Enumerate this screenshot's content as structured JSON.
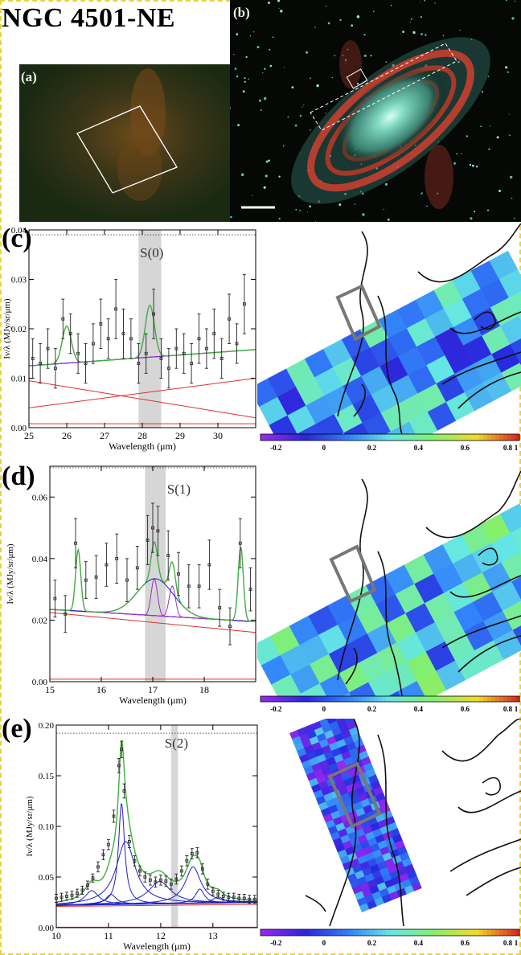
{
  "title": "NGC 4501-NE",
  "labels": {
    "a": "(a)",
    "b": "(b)",
    "c": "(c)",
    "d": "(d)",
    "e": "(e)"
  },
  "colorbar_ticks": [
    "-0.2",
    "0",
    "0.2",
    "0.4",
    "0.6",
    "0.8",
    "1"
  ],
  "colors": {
    "frame": "#e8d23a",
    "red": "#e03030",
    "blue": "#2020c0",
    "green": "#40b040",
    "purple": "#9a30c8",
    "gray_band": "#c8c8c8"
  },
  "chart_data": [
    {
      "id": "c",
      "type": "line",
      "title": "S(0)",
      "xlabel": "Wavelength (μm)",
      "ylabel": "Iν/λ (MJy/sr/μm)",
      "xlim": [
        25,
        31
      ],
      "ylim": [
        0,
        0.04
      ],
      "xticks": [
        25,
        26,
        27,
        28,
        29,
        30
      ],
      "yticks": [
        0.0,
        0.01,
        0.02,
        0.03,
        0.04
      ],
      "ytick_labels": [
        "0.00",
        "0.01",
        "0.02",
        "0.03",
        "0.04"
      ],
      "band": [
        27.9,
        28.5
      ],
      "dotted_level": 0.039,
      "data_points": {
        "x": [
          25.1,
          25.3,
          25.5,
          25.7,
          25.9,
          26.1,
          26.3,
          26.5,
          26.7,
          26.9,
          27.1,
          27.3,
          27.5,
          27.7,
          27.9,
          28.1,
          28.3,
          28.5,
          28.7,
          28.9,
          29.1,
          29.3,
          29.5,
          29.7,
          29.9,
          30.1,
          30.3,
          30.5,
          30.7
        ],
        "y": [
          0.014,
          0.013,
          0.016,
          0.012,
          0.022,
          0.019,
          0.015,
          0.013,
          0.017,
          0.021,
          0.018,
          0.024,
          0.019,
          0.018,
          0.013,
          0.015,
          0.023,
          0.014,
          0.012,
          0.016,
          0.015,
          0.013,
          0.018,
          0.016,
          0.019,
          0.014,
          0.022,
          0.017,
          0.025
        ],
        "err": [
          0.004,
          0.004,
          0.004,
          0.004,
          0.004,
          0.004,
          0.004,
          0.004,
          0.004,
          0.005,
          0.004,
          0.006,
          0.005,
          0.004,
          0.004,
          0.004,
          0.005,
          0.004,
          0.004,
          0.004,
          0.004,
          0.004,
          0.005,
          0.004,
          0.005,
          0.004,
          0.005,
          0.004,
          0.006
        ]
      },
      "continuum": [
        [
          25,
          0.0125
        ],
        [
          31,
          0.0158
        ]
      ],
      "red_lines": [
        [
          [
            25,
            0.0095
          ],
          [
            31,
            0.002
          ]
        ],
        [
          [
            25,
            0.004
          ],
          [
            31,
            0.01
          ]
        ],
        [
          [
            25,
            0.0008
          ],
          [
            31,
            0.0008
          ]
        ]
      ],
      "lines": [
        {
          "center": 26.0,
          "height": 0.0075,
          "width": 0.12
        },
        {
          "center": 28.2,
          "height": 0.0105,
          "width": 0.12
        }
      ]
    },
    {
      "id": "d",
      "type": "line",
      "title": "S(1)",
      "xlabel": "Wavelength (μm)",
      "ylabel": "Iν/λ (MJy/sr/μm)",
      "xlim": [
        15,
        19
      ],
      "ylim": [
        0,
        0.07
      ],
      "xticks": [
        15,
        16,
        17,
        18
      ],
      "yticks": [
        0.0,
        0.02,
        0.04,
        0.06
      ],
      "ytick_labels": [
        "0.00",
        "0.02",
        "0.04",
        "0.06"
      ],
      "band": [
        16.85,
        17.25
      ],
      "dotted_level": 0.0695,
      "data_points": {
        "x": [
          15.1,
          15.3,
          15.5,
          15.7,
          15.9,
          16.1,
          16.3,
          16.5,
          16.7,
          16.9,
          17.0,
          17.1,
          17.3,
          17.5,
          17.7,
          17.9,
          18.1,
          18.3,
          18.5,
          18.7,
          18.9
        ],
        "y": [
          0.027,
          0.022,
          0.045,
          0.033,
          0.034,
          0.038,
          0.04,
          0.033,
          0.037,
          0.046,
          0.05,
          0.049,
          0.041,
          0.035,
          0.031,
          0.031,
          0.038,
          0.024,
          0.018,
          0.045,
          0.03
        ],
        "err": [
          0.006,
          0.006,
          0.008,
          0.006,
          0.007,
          0.007,
          0.008,
          0.007,
          0.007,
          0.008,
          0.008,
          0.008,
          0.008,
          0.007,
          0.007,
          0.007,
          0.008,
          0.006,
          0.006,
          0.008,
          0.007
        ]
      },
      "continuum": [
        [
          15,
          0.0235
        ],
        [
          19,
          0.0195
        ]
      ],
      "red_lines": [
        [
          [
            15,
            0.0225
          ],
          [
            19,
            0.016
          ]
        ],
        [
          [
            15,
            0.0008
          ],
          [
            19,
            0.0008
          ]
        ]
      ],
      "broad": [
        {
          "center": 17.05,
          "height": 0.012,
          "width": 0.35
        }
      ],
      "lines": [
        {
          "center": 15.55,
          "height": 0.02,
          "width": 0.05
        },
        {
          "center": 17.03,
          "height": 0.012,
          "width": 0.06
        },
        {
          "center": 17.38,
          "height": 0.01,
          "width": 0.06
        },
        {
          "center": 18.71,
          "height": 0.024,
          "width": 0.05
        }
      ]
    },
    {
      "id": "e",
      "type": "line",
      "title": "S(2)",
      "xlabel": "Wavelength (μm)",
      "ylabel": "Iν/λ (MJy/sr/μm)",
      "xlim": [
        10,
        13.85
      ],
      "ylim": [
        0,
        0.2
      ],
      "xticks": [
        10,
        11,
        12,
        13
      ],
      "yticks": [
        0.0,
        0.05,
        0.1,
        0.15,
        0.2
      ],
      "ytick_labels": [
        "0.00",
        "0.05",
        "0.10",
        "0.15",
        "0.20"
      ],
      "band": [
        12.2,
        12.33
      ],
      "dotted_level": 0.192,
      "data_points": {
        "x": [
          10.0,
          10.1,
          10.2,
          10.3,
          10.4,
          10.5,
          10.6,
          10.7,
          10.8,
          10.9,
          11.0,
          11.1,
          11.2,
          11.25,
          11.3,
          11.4,
          11.5,
          11.6,
          11.7,
          11.8,
          11.9,
          12.0,
          12.1,
          12.2,
          12.3,
          12.4,
          12.5,
          12.6,
          12.7,
          12.8,
          12.9,
          13.0,
          13.1,
          13.2,
          13.3,
          13.4,
          13.5,
          13.6,
          13.7,
          13.8
        ],
        "y": [
          0.029,
          0.03,
          0.031,
          0.032,
          0.034,
          0.037,
          0.042,
          0.049,
          0.06,
          0.072,
          0.082,
          0.11,
          0.16,
          0.176,
          0.135,
          0.085,
          0.066,
          0.056,
          0.05,
          0.047,
          0.045,
          0.047,
          0.046,
          0.043,
          0.048,
          0.056,
          0.066,
          0.073,
          0.074,
          0.058,
          0.043,
          0.036,
          0.033,
          0.031,
          0.03,
          0.03,
          0.029,
          0.029,
          0.028,
          0.028
        ],
        "err": [
          0.004,
          0.004,
          0.004,
          0.004,
          0.004,
          0.004,
          0.004,
          0.004,
          0.005,
          0.005,
          0.005,
          0.006,
          0.007,
          0.008,
          0.007,
          0.006,
          0.005,
          0.005,
          0.005,
          0.005,
          0.005,
          0.005,
          0.005,
          0.005,
          0.005,
          0.005,
          0.005,
          0.005,
          0.005,
          0.005,
          0.005,
          0.004,
          0.004,
          0.004,
          0.004,
          0.004,
          0.004,
          0.004,
          0.004,
          0.004
        ]
      },
      "continuum": [
        [
          10,
          0.022
        ],
        [
          13.85,
          0.025
        ]
      ],
      "red_lines": [
        [
          [
            10,
            0.021
          ],
          [
            13.85,
            0.023
          ]
        ],
        [
          [
            10,
            0.0005
          ],
          [
            13.85,
            0.0005
          ]
        ]
      ],
      "blue_profiles": [
        {
          "center": 11.25,
          "height": 0.1,
          "width": 0.07
        },
        {
          "center": 11.33,
          "height": 0.062,
          "width": 0.22
        },
        {
          "center": 10.68,
          "height": 0.014,
          "width": 0.16
        },
        {
          "center": 11.05,
          "height": 0.01,
          "width": 0.12
        },
        {
          "center": 11.98,
          "height": 0.022,
          "width": 0.26
        },
        {
          "center": 12.62,
          "height": 0.036,
          "width": 0.18
        },
        {
          "center": 12.75,
          "height": 0.014,
          "width": 0.1
        },
        {
          "center": 13.1,
          "height": 0.006,
          "width": 0.12
        }
      ]
    }
  ]
}
